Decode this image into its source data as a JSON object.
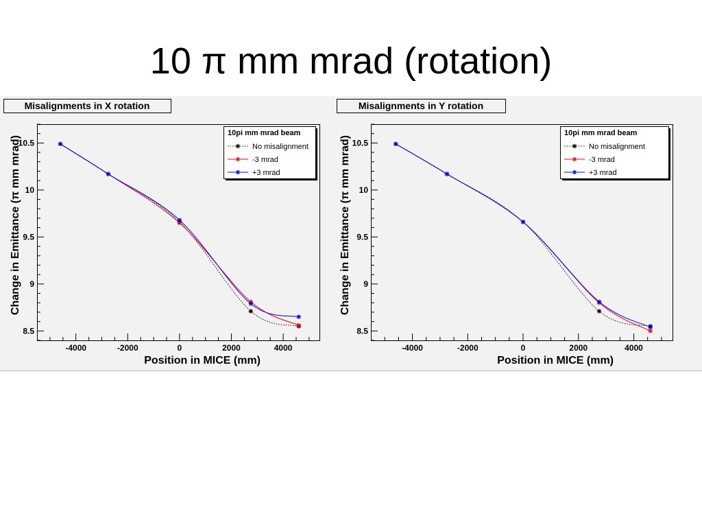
{
  "slide": {
    "title": "10 π mm mrad (rotation)"
  },
  "chart_data": [
    {
      "type": "line",
      "title": "Misalignments in X rotation",
      "xlabel": "Position in MICE (mm)",
      "ylabel": "Change in Emittance (π mm mrad)",
      "xlim": [
        -5500,
        5400
      ],
      "ylim": [
        8.4,
        10.7
      ],
      "xticks": [
        -4000,
        -2000,
        0,
        2000,
        4000
      ],
      "yticks": [
        8.5,
        9,
        9.5,
        10,
        10.5
      ],
      "ytick_labels": [
        "8.5",
        "9",
        "9.5",
        "10",
        "10.5"
      ],
      "xtick_labels": [
        "-4000",
        "-2000",
        "0",
        "2000",
        "4000"
      ],
      "grid": false,
      "legend": {
        "header": "10pi mm mrad beam",
        "placement": "top-right"
      },
      "series": [
        {
          "name": "No misalignment",
          "color": "#000000",
          "style": "dotted",
          "x": [
            -4600,
            -2750,
            0,
            2750,
            4600
          ],
          "y": [
            10.49,
            10.17,
            9.66,
            8.71,
            8.55
          ]
        },
        {
          "name": "-3 mrad",
          "color": "#ff0000",
          "style": "solid",
          "x": [
            -4600,
            -2750,
            0,
            2750,
            4600
          ],
          "y": [
            10.49,
            10.17,
            9.65,
            8.81,
            8.56
          ]
        },
        {
          "name": "+3 mrad",
          "color": "#0000ff",
          "style": "solid",
          "x": [
            -4600,
            -2750,
            0,
            2750,
            4600
          ],
          "y": [
            10.49,
            10.17,
            9.68,
            8.79,
            8.65
          ]
        }
      ]
    },
    {
      "type": "line",
      "title": "Misalignments in Y rotation",
      "xlabel": "Position in MICE (mm)",
      "ylabel": "Change in Emittance (π mm mrad)",
      "xlim": [
        -5500,
        5400
      ],
      "ylim": [
        8.4,
        10.7
      ],
      "xticks": [
        -4000,
        -2000,
        0,
        2000,
        4000
      ],
      "yticks": [
        8.5,
        9,
        9.5,
        10,
        10.5
      ],
      "ytick_labels": [
        "8.5",
        "9",
        "9.5",
        "10",
        "10.5"
      ],
      "xtick_labels": [
        "-4000",
        "-2000",
        "0",
        "2000",
        "4000"
      ],
      "grid": false,
      "legend": {
        "header": "10pi mm mrad beam",
        "placement": "top-right"
      },
      "series": [
        {
          "name": "No misalignment",
          "color": "#000000",
          "style": "dotted",
          "x": [
            -4600,
            -2750,
            0,
            2750,
            4600
          ],
          "y": [
            10.49,
            10.17,
            9.66,
            8.71,
            8.55
          ]
        },
        {
          "name": "-3 mrad",
          "color": "#ff0000",
          "style": "solid",
          "x": [
            -4600,
            -2750,
            0,
            2750,
            4600
          ],
          "y": [
            10.49,
            10.17,
            9.66,
            8.8,
            8.5
          ]
        },
        {
          "name": "+3 mrad",
          "color": "#0000ff",
          "style": "solid",
          "x": [
            -4600,
            -2750,
            0,
            2750,
            4600
          ],
          "y": [
            10.49,
            10.17,
            9.66,
            8.81,
            8.54
          ]
        }
      ]
    }
  ]
}
